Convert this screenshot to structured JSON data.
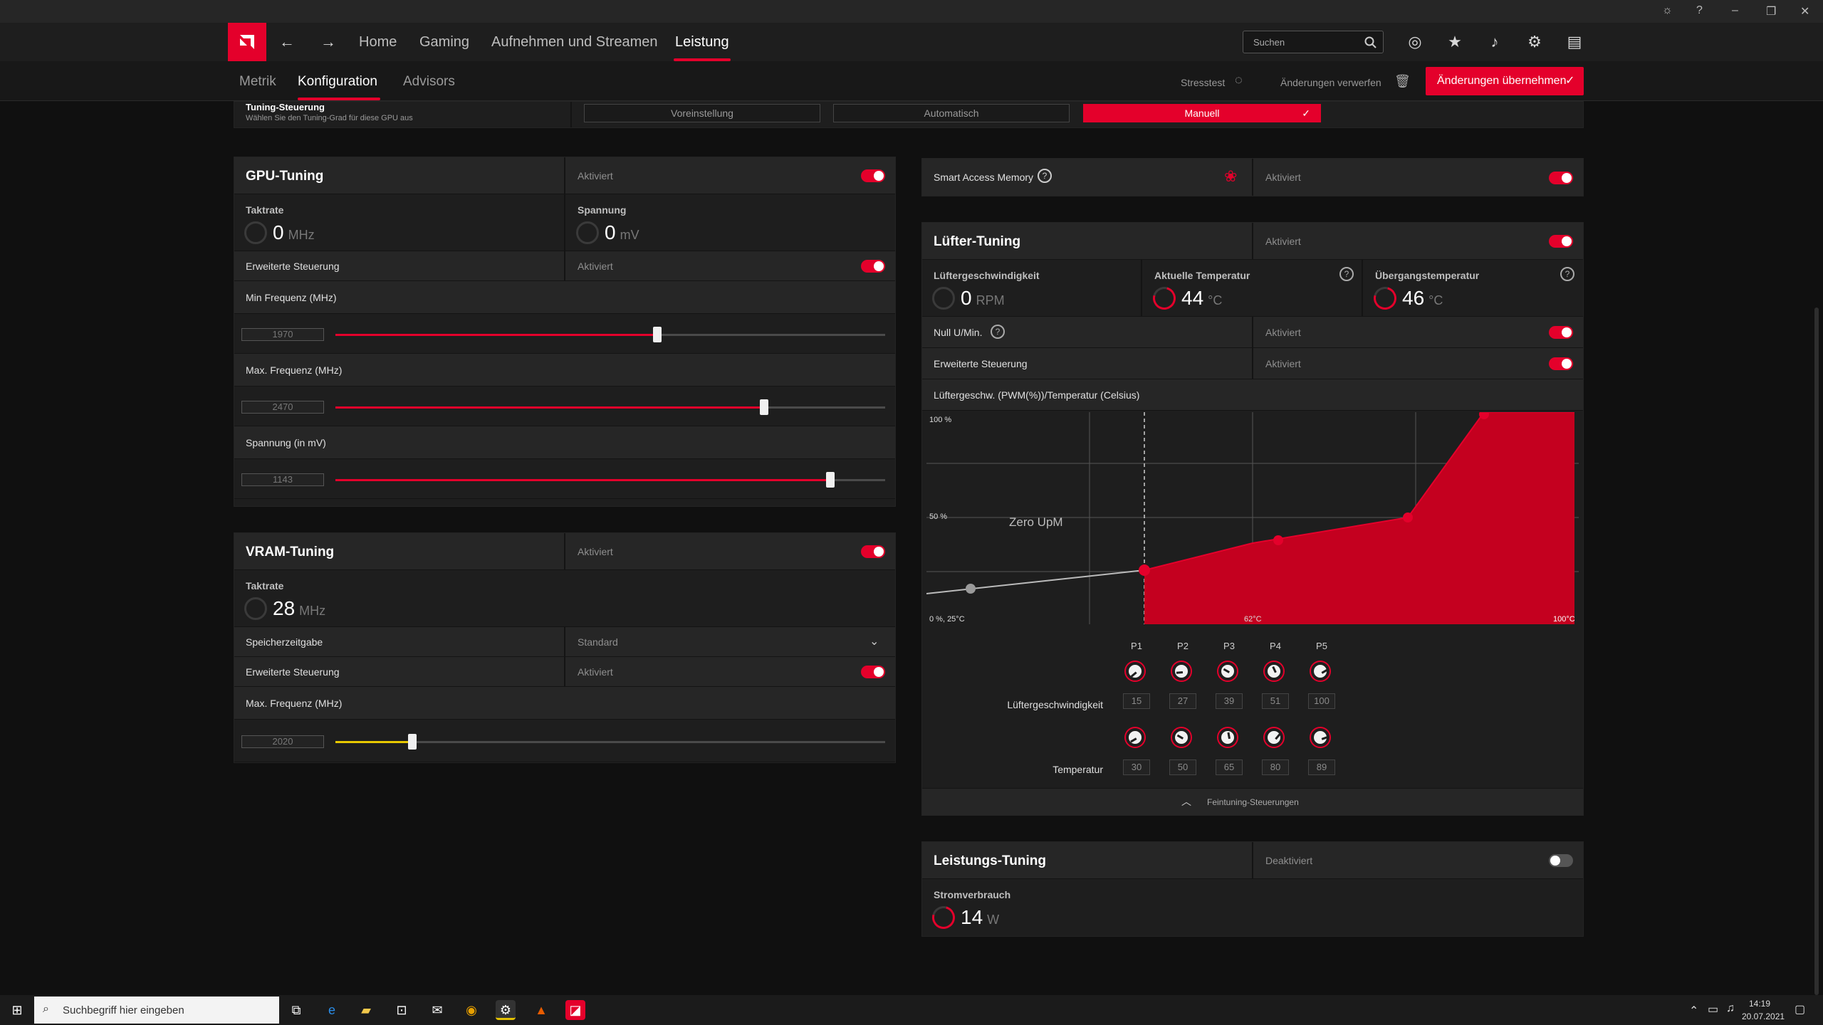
{
  "window": {
    "minimize": "–",
    "restore": "❐",
    "close": "✕"
  },
  "header": {
    "nav": [
      "Home",
      "Gaming",
      "Aufnehmen und Streamen",
      "Leistung"
    ],
    "search_placeholder": "Suchen"
  },
  "subnav": {
    "tabs": [
      "Metrik",
      "Konfiguration",
      "Advisors"
    ],
    "stresstest": "Stresstest",
    "discard": "Änderungen verwerfen",
    "apply": "Änderungen übernehmen"
  },
  "tuning": {
    "title": "Tuning-Steuerung",
    "subtitle": "Wählen Sie den Tuning-Grad für diese GPU aus",
    "options": [
      "Voreinstellung",
      "Automatisch",
      "Manuell"
    ],
    "selected": "Manuell"
  },
  "gpu": {
    "title": "GPU-Tuning",
    "status": "Aktiviert",
    "clock_label": "Taktrate",
    "clock_value": "0",
    "clock_unit": "MHz",
    "voltage_label": "Spannung",
    "voltage_value": "0",
    "voltage_unit": "mV",
    "advanced_label": "Erweiterte Steuerung",
    "advanced_status": "Aktiviert",
    "sliders": [
      {
        "label": "Min Frequenz (MHz)",
        "value": "1970",
        "fraction": 0.585
      },
      {
        "label": "Max. Frequenz (MHz)",
        "value": "2470",
        "fraction": 0.78
      },
      {
        "label": "Spannung (in mV)",
        "value": "1143",
        "fraction": 0.9
      }
    ]
  },
  "vram": {
    "title": "VRAM-Tuning",
    "status": "Aktiviert",
    "clock_label": "Taktrate",
    "clock_value": "28",
    "clock_unit": "MHz",
    "timing_label": "Speicherzeitgabe",
    "timing_value": "Standard",
    "advanced_label": "Erweiterte Steuerung",
    "advanced_status": "Aktiviert",
    "slider": {
      "label": "Max. Frequenz (MHz)",
      "value": "2020",
      "fraction": 0.14
    }
  },
  "sam": {
    "label": "Smart Access Memory",
    "status": "Aktiviert"
  },
  "fan": {
    "title": "Lüfter-Tuning",
    "status": "Aktiviert",
    "speed_label": "Lüftergeschwindigkeit",
    "speed_value": "0",
    "speed_unit": "RPM",
    "temp_label": "Aktuelle Temperatur",
    "temp_value": "44",
    "temp_unit": "°C",
    "junction_label": "Übergangstemperatur",
    "junction_value": "46",
    "junction_unit": "°C",
    "zero_label": "Null U/Min.",
    "zero_status": "Aktiviert",
    "advanced_label": "Erweiterte Steuerung",
    "advanced_status": "Aktiviert",
    "curve_label": "Lüftergeschw. (PWM(%))/Temperatur (Celsius)",
    "chart": {
      "y_top": "100 %",
      "y_mid": "50 %",
      "origin": "0 %, 25°C",
      "x_mark": "62°C",
      "x_end": "100°C",
      "zero_zone": "Zero UpM"
    },
    "points": [
      "P1",
      "P2",
      "P3",
      "P4",
      "P5"
    ],
    "speed_row_label": "Lüftergeschwindigkeit",
    "speed_values": [
      "15",
      "27",
      "39",
      "51",
      "100"
    ],
    "temp_row_label": "Temperatur",
    "temp_values": [
      "30",
      "50",
      "65",
      "80",
      "89"
    ],
    "fine_tuning": "Feintuning-Steuerungen"
  },
  "power": {
    "title": "Leistungs-Tuning",
    "status": "Deaktiviert",
    "consumption_label": "Stromverbrauch",
    "consumption_value": "14",
    "consumption_unit": "W"
  },
  "taskbar": {
    "search": "Suchbegriff hier eingeben",
    "time": "14:19",
    "date": "20.07.2021"
  }
}
